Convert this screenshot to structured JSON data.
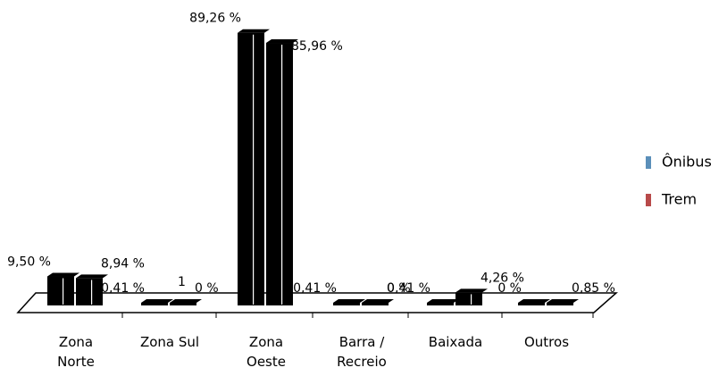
{
  "chart_data": {
    "type": "bar3d",
    "categories": [
      "Zona Norte",
      "Zona Sul",
      "Zona Oeste",
      "Barra / Recreio",
      "Baixada",
      "Outros"
    ],
    "series": [
      {
        "name": "Ônibus",
        "color": "#5b8fb9",
        "values": [
          9.5,
          0.41,
          89.26,
          0.41,
          0.41,
          0
        ],
        "value_labels": [
          "9,50 %",
          "0,41 %",
          "89,26 %",
          "0,41 %",
          "0,41 %",
          "0 %"
        ]
      },
      {
        "name": "Trem",
        "color": "#b84a4a",
        "values": [
          8.94,
          0,
          85.96,
          0,
          4.26,
          0.85
        ],
        "value_labels": [
          "8,94 %",
          "0 %",
          "85,96 %",
          "0 %",
          "4,26 %",
          "0,85 %"
        ]
      }
    ],
    "bar_color": "#000000",
    "annotations": [
      "1"
    ],
    "legend": "right"
  }
}
